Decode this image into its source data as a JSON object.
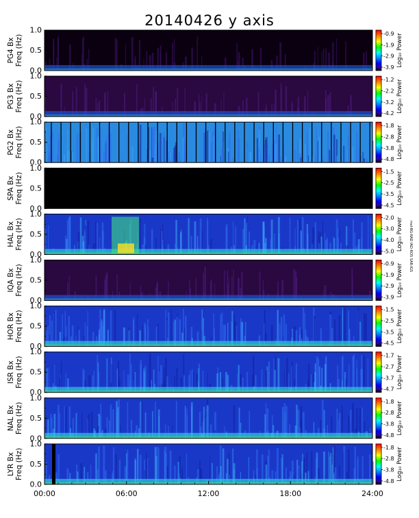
{
  "title": "20140426 y axis",
  "chart_data": [
    {
      "type": "heatmap",
      "station": "PG4",
      "ylabel_line1": "PG4 Bx",
      "ylabel_line2": "Freq (Hz)",
      "yticks": [
        "0.0",
        "0.5",
        "1.0"
      ],
      "ylim": [
        0,
        1
      ],
      "colorbar_label": "Log₁₀ Power",
      "colorbar_ticks": [
        "-0.9",
        "-1.9",
        "-2.9",
        "-3.9"
      ],
      "pattern": "dark",
      "lowband": true
    },
    {
      "type": "heatmap",
      "station": "PG3",
      "ylabel_line1": "PG3 Bx",
      "ylabel_line2": "Freq (Hz)",
      "yticks": [
        "0.0",
        "0.5",
        "1.0"
      ],
      "ylim": [
        0,
        1
      ],
      "colorbar_label": "Log₁₀ Power",
      "colorbar_ticks": [
        "-1.2",
        "-2.2",
        "-3.2",
        "-4.2"
      ],
      "pattern": "purple",
      "lowband": true
    },
    {
      "type": "heatmap",
      "station": "PG2",
      "ylabel_line1": "PG2 Bx",
      "ylabel_line2": "Freq (Hz)",
      "yticks": [
        "0.0",
        "0.5",
        "1.0"
      ],
      "ylim": [
        0,
        1
      ],
      "colorbar_label": "Log₁₀ Power",
      "colorbar_ticks": [
        "-1.8",
        "-2.8",
        "-3.8",
        "-4.8"
      ],
      "pattern": "cyan-striped",
      "lowband": false
    },
    {
      "type": "heatmap",
      "station": "SPA",
      "ylabel_line1": "SPA Bx",
      "ylabel_line2": "Freq (Hz)",
      "yticks": [
        "0.0",
        "0.5",
        "1.0"
      ],
      "ylim": [
        0,
        1
      ],
      "colorbar_label": "Log₁₀ Power",
      "colorbar_ticks": [
        "-1.5",
        "-2.5",
        "-3.5",
        "-4.5"
      ],
      "pattern": "black",
      "lowband": false
    },
    {
      "type": "heatmap",
      "station": "HAL",
      "ylabel_line1": "HAL Bx",
      "ylabel_line2": "Freq (Hz)",
      "yticks": [
        "0.0",
        "0.5",
        "1.0"
      ],
      "ylim": [
        0,
        1
      ],
      "colorbar_label": "Log₁₀ Power",
      "colorbar_ticks": [
        "-2.0",
        "-3.0",
        "-4.0",
        "-5.0"
      ],
      "pattern": "blue",
      "lowband": true
    },
    {
      "type": "heatmap",
      "station": "IQA",
      "ylabel_line1": "IQA Bx",
      "ylabel_line2": "Freq (Hz)",
      "yticks": [
        "0.0",
        "0.5",
        "1.0"
      ],
      "ylim": [
        0,
        1
      ],
      "colorbar_label": "Log₁₀ Power",
      "colorbar_ticks": [
        "-0.9",
        "-1.9",
        "-2.9",
        "-3.9"
      ],
      "pattern": "purple",
      "lowband": true
    },
    {
      "type": "heatmap",
      "station": "HOR",
      "ylabel_line1": "HOR Bx",
      "ylabel_line2": "Freq (Hz)",
      "yticks": [
        "0.0",
        "0.5",
        "1.0"
      ],
      "ylim": [
        0,
        1
      ],
      "colorbar_label": "Log₁₀ Power",
      "colorbar_ticks": [
        "-1.5",
        "-2.5",
        "-3.5",
        "-4.5"
      ],
      "pattern": "blue",
      "lowband": true
    },
    {
      "type": "heatmap",
      "station": "ISR",
      "ylabel_line1": "ISR Bx",
      "ylabel_line2": "Freq (Hz)",
      "yticks": [
        "0.0",
        "0.5",
        "1.0"
      ],
      "ylim": [
        0,
        1
      ],
      "colorbar_label": "Log₁₀ Power",
      "colorbar_ticks": [
        "-1.7",
        "-2.7",
        "-3.7",
        "-4.7"
      ],
      "pattern": "blue",
      "lowband": true
    },
    {
      "type": "heatmap",
      "station": "NAL",
      "ylabel_line1": "NAL Bx",
      "ylabel_line2": "Freq (Hz)",
      "yticks": [
        "0.0",
        "0.5",
        "1.0"
      ],
      "ylim": [
        0,
        1
      ],
      "colorbar_label": "Log₁₀ Power",
      "colorbar_ticks": [
        "-1.8",
        "-2.8",
        "-3.8",
        "-4.8"
      ],
      "pattern": "blue",
      "lowband": true
    },
    {
      "type": "heatmap",
      "station": "LYR",
      "ylabel_line1": "LYR Bx",
      "ylabel_line2": "Freq (Hz)",
      "yticks": [
        "0.0",
        "0.5",
        "1.0"
      ],
      "ylim": [
        0,
        1
      ],
      "colorbar_label": "Log₁₀ Power",
      "colorbar_ticks": [
        "-1.8",
        "-2.8",
        "-3.8",
        "-4.8"
      ],
      "pattern": "blue",
      "lowband": true
    }
  ],
  "xaxis": {
    "ticks": [
      "00:00",
      "06:00",
      "12:00",
      "18:00",
      "24:00"
    ],
    "xlim_hours": [
      0,
      24
    ]
  },
  "side_note": "mvI-BG-RAD IAD-ROS SAR-IGS",
  "colorbar_colors": [
    "#ff0000",
    "#ff8000",
    "#ffff00",
    "#00ff00",
    "#00ffff",
    "#0080ff",
    "#0000ff",
    "#3000a0",
    "#000000"
  ]
}
